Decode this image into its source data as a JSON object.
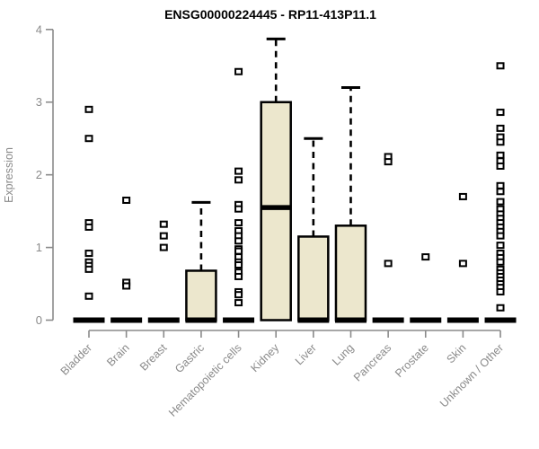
{
  "title": "ENSG00000224445 - RP11-413P11.1",
  "chart_data": {
    "type": "boxplot",
    "title": "ENSG00000224445 - RP11-413P11.1",
    "xlabel": "",
    "ylabel": "Expression",
    "ylim": [
      0,
      4
    ],
    "yticks": [
      "0",
      "1",
      "2",
      "3",
      "4"
    ],
    "grid": false,
    "legend": "none",
    "categories": [
      "Bladder",
      "Brain",
      "Breast",
      "Gastric",
      "Hematopoietic cells",
      "Kidney",
      "Liver",
      "Lung",
      "Pancreas",
      "Prostate",
      "Skin",
      "Unknown / Other"
    ],
    "series": [
      {
        "category": "Bladder",
        "q1": 0,
        "median": 0,
        "q3": 0,
        "whisker_low": 0,
        "whisker_high": 0,
        "outliers": [
          2.9,
          2.5,
          1.34,
          1.28,
          0.92,
          0.8,
          0.75,
          0.7,
          0.33
        ]
      },
      {
        "category": "Brain",
        "q1": 0,
        "median": 0,
        "q3": 0,
        "whisker_low": 0,
        "whisker_high": 0,
        "outliers": [
          1.65,
          0.52,
          0.47
        ]
      },
      {
        "category": "Breast",
        "q1": 0,
        "median": 0,
        "q3": 0,
        "whisker_low": 0,
        "whisker_high": 0,
        "outliers": [
          1.32,
          1.16,
          1.0
        ]
      },
      {
        "category": "Gastric",
        "q1": 0,
        "median": 0,
        "q3": 0.68,
        "whisker_low": 0,
        "whisker_high": 1.62,
        "outliers": []
      },
      {
        "category": "Hematopoietic cells",
        "q1": 0,
        "median": 0,
        "q3": 0,
        "whisker_low": 0,
        "whisker_high": 0,
        "outliers": [
          3.42,
          2.05,
          1.93,
          1.59,
          1.53,
          1.34,
          1.23,
          1.16,
          1.09,
          0.98,
          0.95,
          0.87,
          0.8,
          0.76,
          0.66,
          0.6,
          0.39,
          0.35,
          0.24
        ]
      },
      {
        "category": "Kidney",
        "q1": 0,
        "median": 1.55,
        "q3": 3.0,
        "whisker_low": 0,
        "whisker_high": 3.87,
        "outliers": []
      },
      {
        "category": "Liver",
        "q1": 0,
        "median": 0,
        "q3": 1.15,
        "whisker_low": 0,
        "whisker_high": 2.5,
        "outliers": []
      },
      {
        "category": "Lung",
        "q1": 0,
        "median": 0,
        "q3": 1.3,
        "whisker_low": 0,
        "whisker_high": 3.2,
        "outliers": []
      },
      {
        "category": "Pancreas",
        "q1": 0,
        "median": 0,
        "q3": 0,
        "whisker_low": 0,
        "whisker_high": 0,
        "outliers": [
          2.25,
          2.18,
          0.78
        ]
      },
      {
        "category": "Prostate",
        "q1": 0,
        "median": 0,
        "q3": 0,
        "whisker_low": 0,
        "whisker_high": 0,
        "outliers": [
          0.87
        ]
      },
      {
        "category": "Skin",
        "q1": 0,
        "median": 0,
        "q3": 0,
        "whisker_low": 0,
        "whisker_high": 0,
        "outliers": [
          1.7,
          0.78
        ]
      },
      {
        "category": "Unknown / Other",
        "q1": 0,
        "median": 0,
        "q3": 0,
        "whisker_low": 0,
        "whisker_high": 0,
        "outliers": [
          3.5,
          2.86,
          2.64,
          2.52,
          2.45,
          2.27,
          2.19,
          2.12,
          1.85,
          1.77,
          1.63,
          1.53,
          1.46,
          1.4,
          1.34,
          1.28,
          1.22,
          1.16,
          1.03,
          0.92,
          0.86,
          0.8,
          0.7,
          0.65,
          0.6,
          0.55,
          0.5,
          0.45,
          0.39,
          0.17
        ]
      }
    ],
    "colors": {
      "box_fill": "#ece7cd",
      "box_stroke": "#000000",
      "median": "#000000",
      "whisker": "#000000",
      "outlier_stroke": "#000000",
      "outlier_fill": "#ffffff",
      "axis": "#8a8a8a",
      "tick_label": "#8a8a8a",
      "title": "#000000",
      "background": "#ffffff"
    }
  }
}
